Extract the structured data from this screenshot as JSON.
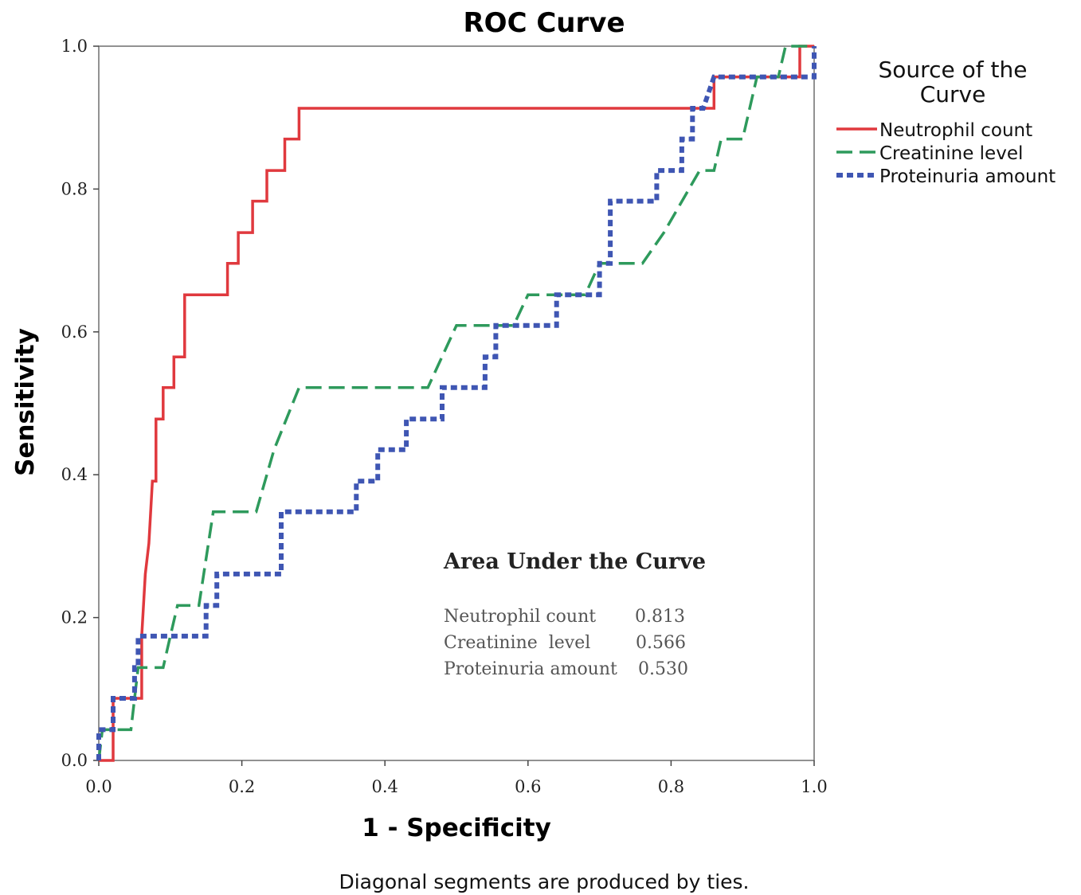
{
  "chart_data": {
    "type": "line",
    "title": "ROC Curve",
    "xlabel": "1 - Specificity",
    "ylabel": "Sensitivity",
    "xlim": [
      0.0,
      1.0
    ],
    "ylim": [
      0.0,
      1.0
    ],
    "x_ticks": [
      "0.0",
      "0.2",
      "0.4",
      "0.6",
      "0.8",
      "1.0"
    ],
    "y_ticks": [
      "0.0",
      "0.2",
      "0.4",
      "0.6",
      "0.8",
      "1.0"
    ],
    "grid": false,
    "legend": {
      "title": "Source of the Curve",
      "placement": "right"
    },
    "series": [
      {
        "name": "Neutrophil count",
        "color": "#e0393e",
        "style": "solid",
        "points": [
          [
            0.0,
            0.0
          ],
          [
            0.02,
            0.0
          ],
          [
            0.02,
            0.087
          ],
          [
            0.06,
            0.087
          ],
          [
            0.06,
            0.174
          ],
          [
            0.065,
            0.261
          ],
          [
            0.07,
            0.304
          ],
          [
            0.075,
            0.391
          ],
          [
            0.08,
            0.391
          ],
          [
            0.08,
            0.478
          ],
          [
            0.09,
            0.478
          ],
          [
            0.09,
            0.522
          ],
          [
            0.105,
            0.522
          ],
          [
            0.105,
            0.565
          ],
          [
            0.12,
            0.565
          ],
          [
            0.12,
            0.652
          ],
          [
            0.18,
            0.652
          ],
          [
            0.18,
            0.696
          ],
          [
            0.195,
            0.696
          ],
          [
            0.195,
            0.739
          ],
          [
            0.215,
            0.739
          ],
          [
            0.215,
            0.783
          ],
          [
            0.235,
            0.783
          ],
          [
            0.235,
            0.826
          ],
          [
            0.26,
            0.826
          ],
          [
            0.26,
            0.87
          ],
          [
            0.28,
            0.87
          ],
          [
            0.28,
            0.913
          ],
          [
            0.86,
            0.913
          ],
          [
            0.86,
            0.957
          ],
          [
            0.98,
            0.957
          ],
          [
            0.98,
            1.0
          ],
          [
            1.0,
            1.0
          ]
        ]
      },
      {
        "name": "Creatinine level",
        "color": "#2e9a5c",
        "style": "dashed",
        "points": [
          [
            0.0,
            0.0
          ],
          [
            0.005,
            0.043
          ],
          [
            0.045,
            0.043
          ],
          [
            0.055,
            0.13
          ],
          [
            0.09,
            0.13
          ],
          [
            0.1,
            0.174
          ],
          [
            0.11,
            0.217
          ],
          [
            0.14,
            0.217
          ],
          [
            0.16,
            0.348
          ],
          [
            0.22,
            0.348
          ],
          [
            0.245,
            0.435
          ],
          [
            0.28,
            0.522
          ],
          [
            0.46,
            0.522
          ],
          [
            0.5,
            0.609
          ],
          [
            0.58,
            0.609
          ],
          [
            0.6,
            0.652
          ],
          [
            0.68,
            0.652
          ],
          [
            0.7,
            0.696
          ],
          [
            0.76,
            0.696
          ],
          [
            0.79,
            0.739
          ],
          [
            0.84,
            0.826
          ],
          [
            0.86,
            0.826
          ],
          [
            0.87,
            0.87
          ],
          [
            0.9,
            0.87
          ],
          [
            0.92,
            0.957
          ],
          [
            0.95,
            0.957
          ],
          [
            0.96,
            1.0
          ],
          [
            1.0,
            1.0
          ]
        ]
      },
      {
        "name": "Proteinuria amount",
        "color": "#3f56b3",
        "style": "dotted",
        "points": [
          [
            0.0,
            0.0
          ],
          [
            0.0,
            0.043
          ],
          [
            0.02,
            0.043
          ],
          [
            0.02,
            0.087
          ],
          [
            0.05,
            0.087
          ],
          [
            0.05,
            0.13
          ],
          [
            0.055,
            0.13
          ],
          [
            0.055,
            0.174
          ],
          [
            0.15,
            0.174
          ],
          [
            0.15,
            0.217
          ],
          [
            0.165,
            0.217
          ],
          [
            0.165,
            0.261
          ],
          [
            0.255,
            0.261
          ],
          [
            0.255,
            0.348
          ],
          [
            0.36,
            0.348
          ],
          [
            0.36,
            0.391
          ],
          [
            0.39,
            0.391
          ],
          [
            0.39,
            0.435
          ],
          [
            0.43,
            0.435
          ],
          [
            0.43,
            0.478
          ],
          [
            0.48,
            0.478
          ],
          [
            0.48,
            0.522
          ],
          [
            0.54,
            0.522
          ],
          [
            0.54,
            0.565
          ],
          [
            0.555,
            0.565
          ],
          [
            0.555,
            0.609
          ],
          [
            0.64,
            0.609
          ],
          [
            0.64,
            0.652
          ],
          [
            0.7,
            0.652
          ],
          [
            0.7,
            0.696
          ],
          [
            0.715,
            0.696
          ],
          [
            0.715,
            0.783
          ],
          [
            0.78,
            0.783
          ],
          [
            0.78,
            0.826
          ],
          [
            0.815,
            0.826
          ],
          [
            0.815,
            0.87
          ],
          [
            0.83,
            0.87
          ],
          [
            0.83,
            0.913
          ],
          [
            0.845,
            0.913
          ],
          [
            0.86,
            0.957
          ],
          [
            1.0,
            0.957
          ],
          [
            1.0,
            1.0
          ]
        ]
      }
    ],
    "auc_table": {
      "title": "Area Under the Curve",
      "rows": [
        {
          "label": "Neutrophil count",
          "value": "0.813"
        },
        {
          "label": "Creatinine  level",
          "value": "0.566"
        },
        {
          "label": "Proteinuria amount",
          "value": "0.530"
        }
      ]
    },
    "footnote": "Diagonal segments are produced by ties."
  }
}
